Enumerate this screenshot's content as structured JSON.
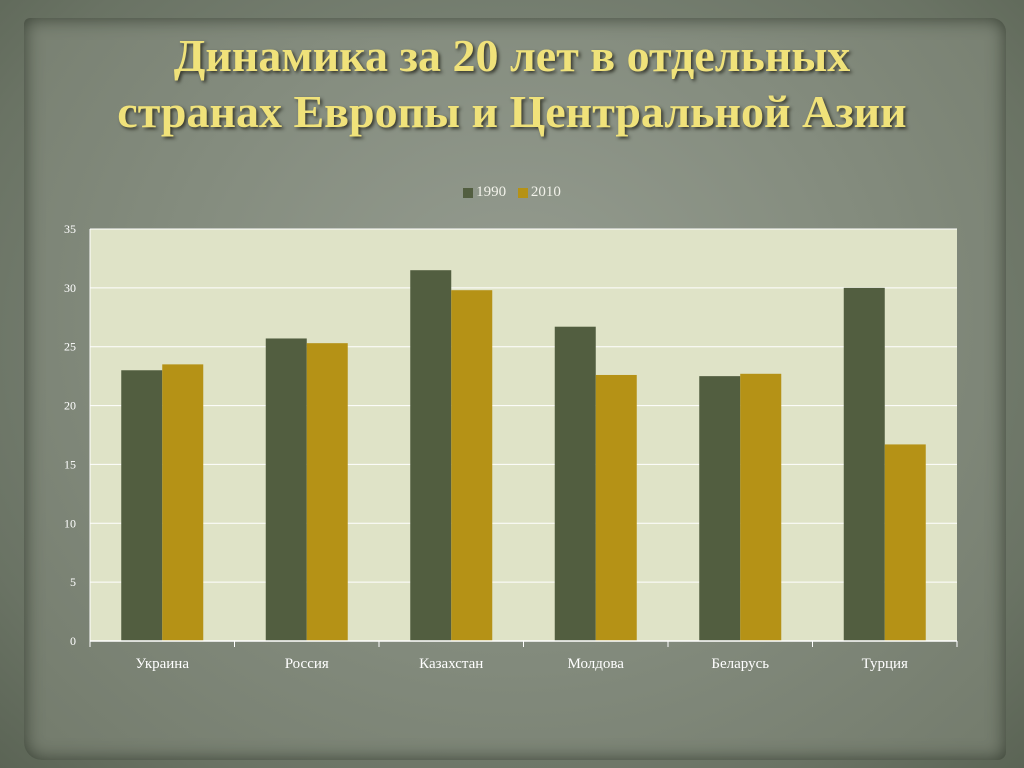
{
  "slide": {
    "title_line1": "Динамика за 20 лет в отдельных",
    "title_line2": "странах Европы и Центральной Азии"
  },
  "colors": {
    "series_1990": "#525e40",
    "series_2010": "#b59216",
    "plot_bg": "#dfe3c7",
    "title": "#f0e27a"
  },
  "chart_data": {
    "type": "bar",
    "title": "",
    "xlabel": "",
    "ylabel": "",
    "categories": [
      "Украина",
      "Россия",
      "Казахстан",
      "Молдова",
      "Беларусь",
      "Турция"
    ],
    "series": [
      {
        "name": "1990",
        "values": [
          23.0,
          25.7,
          31.5,
          26.7,
          22.5,
          30.0
        ]
      },
      {
        "name": "2010",
        "values": [
          23.5,
          25.3,
          29.8,
          22.6,
          22.7,
          16.7
        ]
      }
    ],
    "ylim": [
      0,
      35
    ],
    "yticks": [
      0,
      5,
      10,
      15,
      20,
      25,
      30,
      35
    ],
    "grid": true,
    "legend_position": "top-center"
  }
}
